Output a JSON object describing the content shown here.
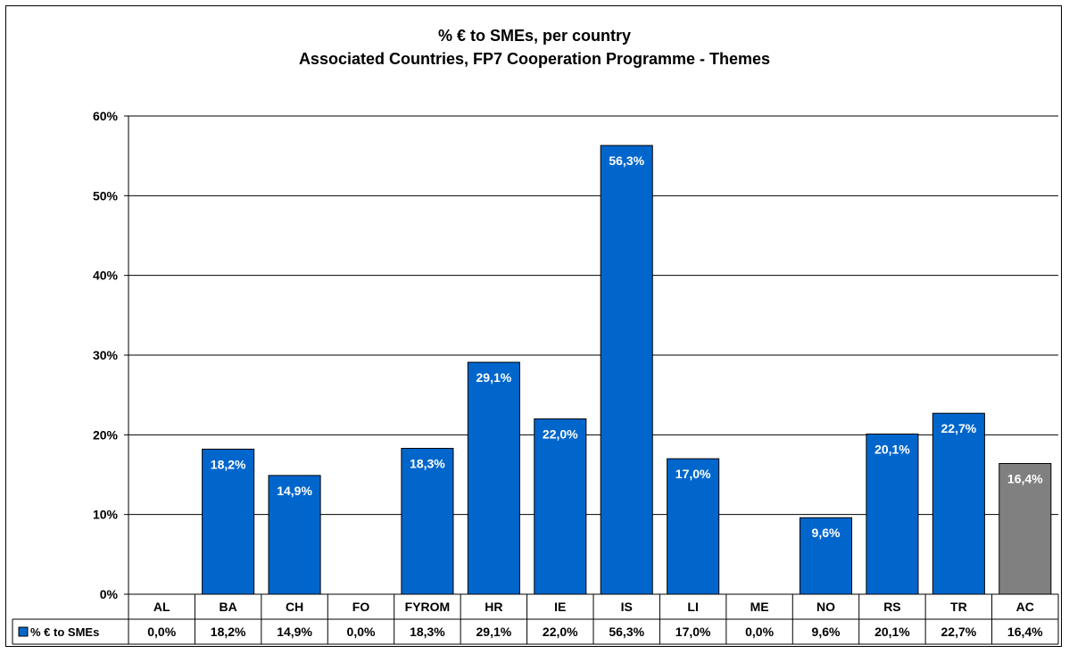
{
  "chart_data": {
    "type": "bar",
    "title": "% € to SMEs, per country",
    "subtitle": "Associated Countries, FP7 Cooperation Programme - Themes",
    "categories": [
      "AL",
      "BA",
      "CH",
      "FO",
      "FYROM",
      "HR",
      "IE",
      "IS",
      "LI",
      "ME",
      "NO",
      "RS",
      "TR",
      "AC"
    ],
    "series": [
      {
        "name": "% € to SMEs",
        "values": [
          0.0,
          18.2,
          14.9,
          0.0,
          18.3,
          29.1,
          22.0,
          56.3,
          17.0,
          0.0,
          9.6,
          20.1,
          22.7,
          16.4
        ],
        "labels": [
          "0,0%",
          "18,2%",
          "14,9%",
          "0,0%",
          "18,3%",
          "29,1%",
          "22,0%",
          "56,3%",
          "17,0%",
          "0,0%",
          "9,6%",
          "20,1%",
          "22,7%",
          "16,4%"
        ]
      }
    ],
    "y_ticks": [
      "0%",
      "10%",
      "20%",
      "30%",
      "40%",
      "50%",
      "60%"
    ],
    "ylim": [
      0,
      60
    ],
    "grid": true,
    "legend": "data-table",
    "colors": {
      "bar": "#0066CC",
      "highlight_bar": "#808080",
      "bar_label": "#ffffff"
    },
    "highlight_category": "AC"
  }
}
